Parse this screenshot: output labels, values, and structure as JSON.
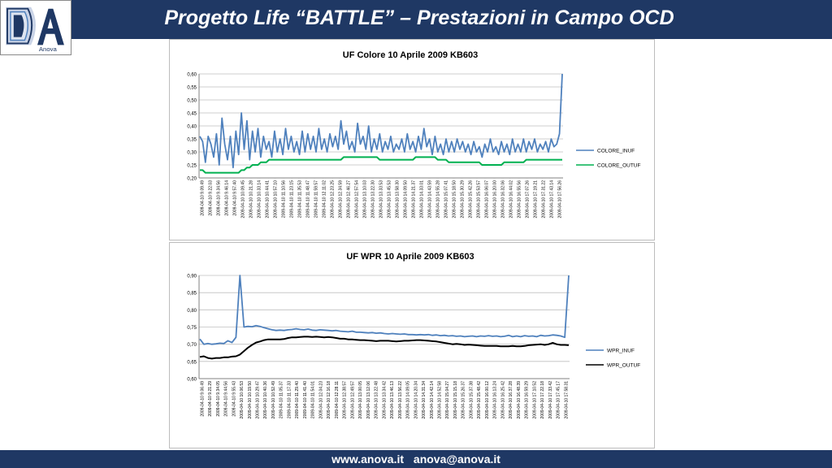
{
  "header": {
    "title": "Progetto Life “BATTLE” – Prestazioni in Campo OCD",
    "logo_text": "Anova"
  },
  "footer": {
    "website": "www.anova.it",
    "email": "anova@anova.it"
  },
  "colors": {
    "header_bg": "#1f3864",
    "series_inuf": "#4f81bd",
    "series_colore_outuf": "#00b050",
    "series_wpr_outuf": "#000000"
  },
  "chart_data": [
    {
      "type": "line",
      "title": "UF Colore 10 Aprile 2009 KB603",
      "xlabel": "",
      "ylabel": "",
      "ylim": [
        0.2,
        0.6
      ],
      "yticks": [
        "0,60",
        "0,55",
        "0,50",
        "0,45",
        "0,40",
        "0,35",
        "0,30",
        "0,25",
        "0,20"
      ],
      "x_tick_labels": [
        "2009-04-10 9.09.49",
        "2009-04-10 9.22.03",
        "2009-04-10 9.34.56",
        "2009-04-10 9.46.14",
        "2009-04-10 9.57.40",
        "2009-04-10 10.09.45",
        "2009-04-10 10.21.28",
        "2009-04-10 10.33.14",
        "2009-04-10 10.44.41",
        "2009-04-10 10.57.10",
        "2009-04-10 11.10.56",
        "2009-04-10 11.23.15",
        "2009-04-10 11.35.53",
        "2009-04-10 11.48.47",
        "2009-04-10 11.59.57",
        "2009-04-10 12.11.02",
        "2009-04-10 12.23.25",
        "2009-04-10 12.34.59",
        "2009-04-10 12.46.27",
        "2009-04-10 12.57.54",
        "2009-04-10 13.10.03",
        "2009-04-10 13.22.30",
        "2009-04-10 13.33.53",
        "2009-04-10 13.45.53",
        "2009-04-10 13.58.30",
        "2009-04-10 14.09.50",
        "2009-04-10 14.21.37",
        "2009-04-10 14.33.01",
        "2009-04-10 14.43.59",
        "2009-04-10 14.55.28",
        "2009-04-10 15.07.41",
        "2009-04-10 15.18.50",
        "2009-04-10 15.30.29",
        "2009-04-10 15.42.26",
        "2009-04-10 15.53.57",
        "2009-04-10 16.06.07",
        "2009-04-10 16.20.00",
        "2009-04-10 16.32.06",
        "2009-04-10 16.44.02",
        "2009-04-10 16.55.56",
        "2009-04-10 17.07.26",
        "2009-04-10 17.19.21",
        "2009-04-10 17.31.22",
        "2009-04-10 17.43.14",
        "2009-04-10 17.56.26"
      ],
      "legend_position": "right",
      "series": [
        {
          "name": "COLORE_INUF",
          "color": "#4f81bd",
          "values": [
            0.36,
            0.34,
            0.26,
            0.36,
            0.33,
            0.28,
            0.37,
            0.25,
            0.43,
            0.33,
            0.27,
            0.36,
            0.24,
            0.38,
            0.29,
            0.45,
            0.31,
            0.42,
            0.27,
            0.38,
            0.3,
            0.39,
            0.28,
            0.36,
            0.31,
            0.34,
            0.28,
            0.38,
            0.3,
            0.35,
            0.29,
            0.39,
            0.31,
            0.36,
            0.3,
            0.34,
            0.29,
            0.38,
            0.3,
            0.37,
            0.31,
            0.36,
            0.3,
            0.39,
            0.31,
            0.35,
            0.3,
            0.37,
            0.32,
            0.36,
            0.31,
            0.42,
            0.33,
            0.38,
            0.31,
            0.34,
            0.3,
            0.41,
            0.33,
            0.36,
            0.31,
            0.4,
            0.3,
            0.35,
            0.31,
            0.37,
            0.3,
            0.34,
            0.31,
            0.36,
            0.3,
            0.33,
            0.31,
            0.35,
            0.3,
            0.37,
            0.31,
            0.34,
            0.3,
            0.36,
            0.31,
            0.39,
            0.32,
            0.35,
            0.29,
            0.36,
            0.3,
            0.33,
            0.29,
            0.35,
            0.3,
            0.34,
            0.3,
            0.35,
            0.31,
            0.34,
            0.3,
            0.33,
            0.29,
            0.34,
            0.3,
            0.32,
            0.28,
            0.33,
            0.3,
            0.35,
            0.3,
            0.32,
            0.29,
            0.34,
            0.3,
            0.33,
            0.29,
            0.35,
            0.3,
            0.33,
            0.3,
            0.35,
            0.3,
            0.34,
            0.31,
            0.35,
            0.3,
            0.33,
            0.31,
            0.34,
            0.3,
            0.35,
            0.32,
            0.33,
            0.37,
            0.6
          ]
        },
        {
          "name": "COLORE_OUTUF",
          "color": "#00b050",
          "values": [
            0.23,
            0.23,
            0.22,
            0.22,
            0.22,
            0.22,
            0.22,
            0.22,
            0.22,
            0.22,
            0.22,
            0.22,
            0.22,
            0.22,
            0.22,
            0.23,
            0.23,
            0.24,
            0.24,
            0.25,
            0.25,
            0.25,
            0.26,
            0.26,
            0.26,
            0.27,
            0.27,
            0.27,
            0.27,
            0.27,
            0.27,
            0.27,
            0.27,
            0.27,
            0.27,
            0.27,
            0.27,
            0.27,
            0.27,
            0.27,
            0.27,
            0.27,
            0.27,
            0.27,
            0.27,
            0.27,
            0.27,
            0.27,
            0.27,
            0.27,
            0.27,
            0.27,
            0.28,
            0.28,
            0.28,
            0.28,
            0.28,
            0.28,
            0.28,
            0.28,
            0.28,
            0.28,
            0.28,
            0.28,
            0.28,
            0.27,
            0.27,
            0.27,
            0.27,
            0.27,
            0.27,
            0.27,
            0.27,
            0.27,
            0.27,
            0.27,
            0.27,
            0.27,
            0.28,
            0.28,
            0.28,
            0.28,
            0.28,
            0.28,
            0.28,
            0.28,
            0.27,
            0.27,
            0.27,
            0.27,
            0.26,
            0.26,
            0.26,
            0.26,
            0.26,
            0.26,
            0.26,
            0.26,
            0.26,
            0.26,
            0.26,
            0.26,
            0.25,
            0.25,
            0.25,
            0.25,
            0.25,
            0.25,
            0.25,
            0.25,
            0.26,
            0.26,
            0.26,
            0.26,
            0.26,
            0.26,
            0.26,
            0.26,
            0.27,
            0.27,
            0.27,
            0.27,
            0.27,
            0.27,
            0.27,
            0.27,
            0.27,
            0.27,
            0.27,
            0.27,
            0.27,
            0.27
          ]
        }
      ]
    },
    {
      "type": "line",
      "title": "UF WPR 10 Aprile 2009 KB603",
      "xlabel": "",
      "ylabel": "",
      "ylim": [
        0.6,
        0.9
      ],
      "yticks": [
        "0,90",
        "0,85",
        "0,80",
        "0,75",
        "0,70",
        "0,65",
        "0,60"
      ],
      "x_tick_labels": [
        "2009-04-10 9.06.49",
        "2009-04-10 9.21.29",
        "2009-04-10 9.34.05",
        "2009-04-10 9.44.56",
        "2009-04-10 9.55.43",
        "2009-04-10 10.06.53",
        "2009-04-10 10.19.50",
        "2009-04-10 10.29.47",
        "2009-04-10 10.40.36",
        "2009-04-10 10.52.49",
        "2009-04-10 11.05.37",
        "2009-04-10 11.17.33",
        "2009-04-10 11.29.40",
        "2009-04-10 11.41.40",
        "2009-04-10 11.54.01",
        "2009-04-10 12.04.23",
        "2009-04-10 12.16.18",
        "2009-04-10 12.28.11",
        "2009-04-10 12.38.57",
        "2009-04-10 12.49.57",
        "2009-04-10 13.00.05",
        "2009-04-10 13.12.06",
        "2009-04-10 13.22.48",
        "2009-04-10 13.34.42",
        "2009-04-10 13.46.13",
        "2009-04-10 13.56.22",
        "2009-04-10 14.09.05",
        "2009-04-10 14.20.34",
        "2009-04-10 14.31.34",
        "2009-04-10 14.42.14",
        "2009-04-10 14.52.58",
        "2009-04-10 15.04.27",
        "2009-04-10 15.15.18",
        "2009-04-10 15.26.37",
        "2009-04-10 15.37.38",
        "2009-04-10 15.48.42",
        "2009-04-10 16.00.12",
        "2009-04-10 16.13.24",
        "2009-04-10 16.25.42",
        "2009-04-10 16.37.28",
        "2009-04-10 16.48.39",
        "2009-04-10 16.59.29",
        "2009-04-10 17.10.52",
        "2009-04-10 17.22.18",
        "2009-04-10 17.33.42",
        "2009-04-10 17.45.17",
        "2009-04-10 17.58.31"
      ],
      "legend_position": "right",
      "series": [
        {
          "name": "WPR_INUF",
          "color": "#4f81bd",
          "values": [
            0.715,
            0.7,
            0.702,
            0.7,
            0.701,
            0.703,
            0.702,
            0.71,
            0.705,
            0.72,
            0.9,
            0.75,
            0.752,
            0.751,
            0.754,
            0.752,
            0.748,
            0.745,
            0.742,
            0.74,
            0.741,
            0.74,
            0.742,
            0.743,
            0.745,
            0.743,
            0.742,
            0.744,
            0.741,
            0.74,
            0.742,
            0.741,
            0.74,
            0.739,
            0.74,
            0.738,
            0.737,
            0.736,
            0.738,
            0.735,
            0.735,
            0.734,
            0.733,
            0.734,
            0.732,
            0.733,
            0.731,
            0.73,
            0.731,
            0.73,
            0.729,
            0.73,
            0.728,
            0.728,
            0.727,
            0.728,
            0.727,
            0.728,
            0.726,
            0.727,
            0.725,
            0.726,
            0.724,
            0.725,
            0.723,
            0.724,
            0.722,
            0.723,
            0.724,
            0.722,
            0.724,
            0.723,
            0.725,
            0.723,
            0.724,
            0.722,
            0.723,
            0.726,
            0.722,
            0.724,
            0.722,
            0.725,
            0.723,
            0.724,
            0.722,
            0.726,
            0.724,
            0.725,
            0.727,
            0.726,
            0.724,
            0.72,
            0.9
          ]
        },
        {
          "name": "WPR_OUTUF",
          "color": "#000000",
          "values": [
            0.663,
            0.665,
            0.66,
            0.658,
            0.66,
            0.66,
            0.662,
            0.662,
            0.664,
            0.665,
            0.67,
            0.68,
            0.69,
            0.698,
            0.705,
            0.708,
            0.712,
            0.714,
            0.714,
            0.714,
            0.714,
            0.715,
            0.718,
            0.72,
            0.72,
            0.721,
            0.722,
            0.722,
            0.721,
            0.722,
            0.721,
            0.72,
            0.721,
            0.72,
            0.718,
            0.716,
            0.716,
            0.714,
            0.714,
            0.713,
            0.712,
            0.712,
            0.711,
            0.71,
            0.709,
            0.71,
            0.71,
            0.71,
            0.709,
            0.708,
            0.709,
            0.71,
            0.71,
            0.711,
            0.712,
            0.712,
            0.711,
            0.71,
            0.709,
            0.708,
            0.706,
            0.704,
            0.702,
            0.7,
            0.701,
            0.7,
            0.698,
            0.699,
            0.698,
            0.697,
            0.696,
            0.695,
            0.695,
            0.695,
            0.695,
            0.694,
            0.694,
            0.694,
            0.695,
            0.694,
            0.694,
            0.695,
            0.697,
            0.698,
            0.699,
            0.7,
            0.698,
            0.7,
            0.704,
            0.7,
            0.698,
            0.698,
            0.697
          ]
        }
      ]
    }
  ]
}
